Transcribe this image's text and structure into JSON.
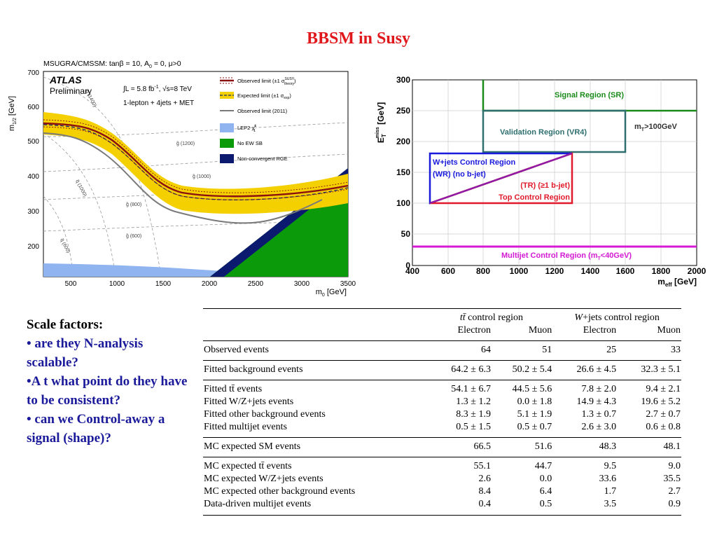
{
  "slide": {
    "title": "BBSM in Susy"
  },
  "scale_factors": {
    "heading": "Scale factors:",
    "items": [
      "• are they N-analysis scalable?",
      "•A t what point do they have to be consistent?",
      "• can we Control-away a signal (shape)?"
    ]
  },
  "atlas_plot": {
    "header": "MSUGRA/CMSSM: tanβ = 10, A",
    "header_sub": "0",
    "header_tail": " = 0, μ>0",
    "logo": "ATLAS",
    "logo_sub": "Preliminary",
    "lumi": "∫L = 5.8 fb",
    "lumi_sup": "-1",
    "energy": ", √s=8 TeV",
    "channel": "1-lepton + 4jets + MET",
    "ylabel": "m",
    "ylabel_sub": "1/2",
    "ylabel_unit": " [GeV]",
    "xlabel": "m",
    "xlabel_sub": "0",
    "xlabel_unit": " [GeV]",
    "xticks": [
      "500",
      "1000",
      "1500",
      "2000",
      "2500",
      "3000",
      "3500"
    ],
    "yticks": [
      "200",
      "300",
      "400",
      "500",
      "600",
      "700"
    ],
    "legend": [
      {
        "label": "Observed limit (±1 σ",
        "sup": "SUSY",
        "sub": "theory",
        "tail": ")",
        "color": "#8b1010"
      },
      {
        "label": "Expected limit (±1 σ",
        "sub": "exp",
        "tail": ")",
        "color": "#f5d000"
      },
      {
        "label": "Observed limit (2011)",
        "color": "#7a7a7a"
      },
      {
        "label": "LEP2 ",
        "chi": "χ̃",
        "chi_sup": "±",
        "chi_sub": "1",
        "color": "#8fb4f0"
      },
      {
        "label": "No EW SB",
        "color": "#0a9a0a"
      },
      {
        "label": "Non-convergent RGE",
        "color": "#0b1a6e"
      }
    ],
    "gluino_labels": [
      "g̃ (1200)",
      "g̃ (1000)",
      "g̃ (800)",
      "g̃ (600)"
    ],
    "squark_labels": [
      "q̃ (1400)",
      "q̃ (1000)",
      "q̃ (600)"
    ],
    "colors": {
      "observed": "#8b1010",
      "expected_band": "#f5d000",
      "expected_line": "#1a2a6a",
      "obs2011": "#7a7a7a",
      "lep": "#8fb4f0",
      "noewsb": "#0a9a0a",
      "nonconv": "#0b1a6e"
    }
  },
  "regions_plot": {
    "ylabel": "E",
    "ylabel_sub": "T",
    "ylabel_sup": "miss",
    "ylabel_unit": " [GeV]",
    "xlabel": "m",
    "xlabel_sub": "eff",
    "xlabel_unit": " [GeV]",
    "xticks": [
      "400",
      "600",
      "800",
      "1000",
      "1200",
      "1400",
      "1600",
      "1800",
      "2000"
    ],
    "yticks": [
      "0",
      "50",
      "100",
      "150",
      "200",
      "250",
      "300"
    ],
    "regions": {
      "signal": {
        "label": "Signal Region (SR)",
        "color": "#1a8a1a"
      },
      "validation": {
        "label": "Validation Region (VR4)",
        "color": "#2f6f6f"
      },
      "mt_cut": {
        "label": "m",
        "sub": "T",
        "tail": ">100GeV"
      },
      "wjets": {
        "line1": "W+jets Control Region",
        "line2": "(WR) (no b-jet)",
        "color": "#1a1adc"
      },
      "top": {
        "line1": "(TR) (≥1 b-jet)",
        "line2": "Top Control Region",
        "color": "#e01a2a"
      },
      "multijet": {
        "label": "Multijet Control Region (m",
        "sub": "T",
        "tail": "<40GeV)",
        "color": "#d41ad4"
      }
    }
  },
  "table": {
    "groups": [
      {
        "label_pre": "",
        "label_math": "tt̄",
        "label_post": " control region"
      },
      {
        "label_pre": "",
        "label_math": "W",
        "label_post": "+jets control region"
      }
    ],
    "columns": [
      "Electron",
      "Muon",
      "Electron",
      "Muon"
    ],
    "rows": [
      {
        "label": "Observed events",
        "values": [
          "64",
          "51",
          "25",
          "33"
        ]
      },
      {
        "label": "Fitted background events",
        "values": [
          "64.2 ± 6.3",
          "50.2 ± 5.4",
          "26.6 ± 4.5",
          "32.3 ± 5.1"
        ]
      },
      {
        "label": "Fitted tt̄ events",
        "values": [
          "54.1 ± 6.7",
          "44.5 ± 5.6",
          "7.8 ± 2.0",
          "9.4 ± 2.1"
        ]
      },
      {
        "label": "Fitted W/Z+jets events",
        "values": [
          "1.3 ± 1.2",
          "0.0 ± 1.8",
          "14.9 ± 4.3",
          "19.6 ± 5.2"
        ]
      },
      {
        "label": "Fitted other background events",
        "values": [
          "8.3 ± 1.9",
          "5.1 ± 1.9",
          "1.3 ± 0.7",
          "2.7 ± 0.7"
        ]
      },
      {
        "label": "Fitted multijet events",
        "values": [
          "0.5 ± 1.5",
          "0.5 ± 0.7",
          "2.6 ± 3.0",
          "0.6 ± 0.8"
        ]
      },
      {
        "label": "MC expected SM events",
        "values": [
          "66.5",
          "51.6",
          "48.3",
          "48.1"
        ]
      },
      {
        "label": "MC expected tt̄ events",
        "values": [
          "55.1",
          "44.7",
          "9.5",
          "9.0"
        ]
      },
      {
        "label": "MC expected W/Z+jets events",
        "values": [
          "2.6",
          "0.0",
          "33.6",
          "35.5"
        ]
      },
      {
        "label": "MC expected other background events",
        "values": [
          "8.4",
          "6.4",
          "1.7",
          "2.7"
        ]
      },
      {
        "label": "Data-driven multijet events",
        "values": [
          "0.4",
          "0.5",
          "3.5",
          "0.9"
        ]
      }
    ]
  }
}
